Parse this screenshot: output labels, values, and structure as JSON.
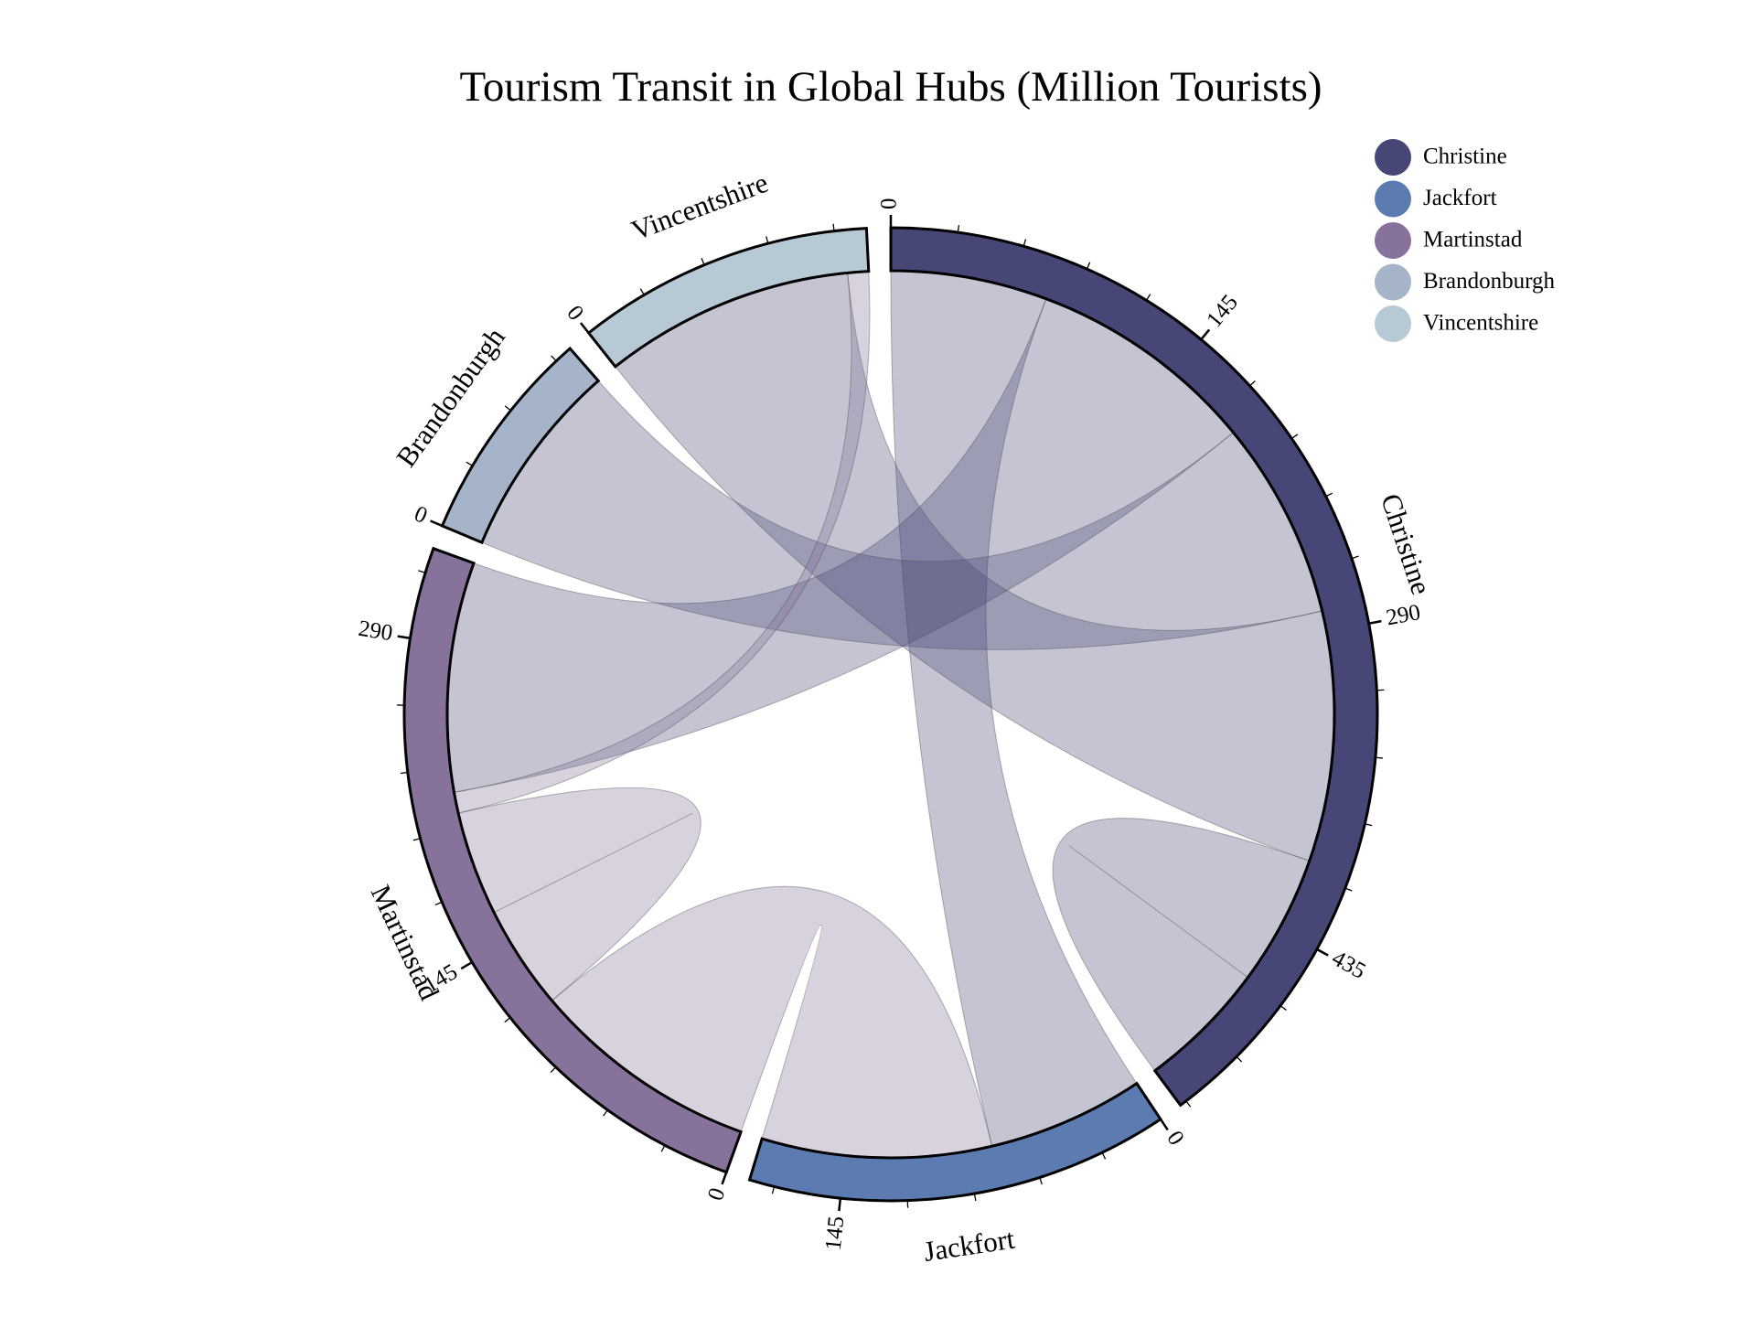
{
  "chart_data": {
    "type": "chord",
    "title": "Tourism Transit in Global Hubs (Million Tourists)",
    "groups": [
      {
        "name": "Christine",
        "color": "#464677"
      },
      {
        "name": "Jackfort",
        "color": "#5b7bb1"
      },
      {
        "name": "Martinstad",
        "color": "#87729c"
      },
      {
        "name": "Brandonburgh",
        "color": "#a5b4c9"
      },
      {
        "name": "Vincentshire",
        "color": "#b8c9d6"
      }
    ],
    "tick_step": 145,
    "minor_tick_step": 29,
    "legend_position": "top-right",
    "flows": [
      {
        "source": "Christine",
        "target": "Jackfort",
        "value": 75
      },
      {
        "source": "Christine",
        "target": "Martinstad",
        "value": 110
      },
      {
        "source": "Christine",
        "target": "Brandonburgh",
        "value": 95
      },
      {
        "source": "Christine",
        "target": "Vincentshire",
        "value": 120
      },
      {
        "source": "Christine",
        "target": "Christine",
        "value": 125
      },
      {
        "source": "Martinstad",
        "target": "Jackfort",
        "value": 110
      },
      {
        "source": "Martinstad",
        "target": "Martinstad",
        "value": 100
      },
      {
        "source": "Martinstad",
        "target": "Vincentshire",
        "value": 10
      }
    ]
  }
}
